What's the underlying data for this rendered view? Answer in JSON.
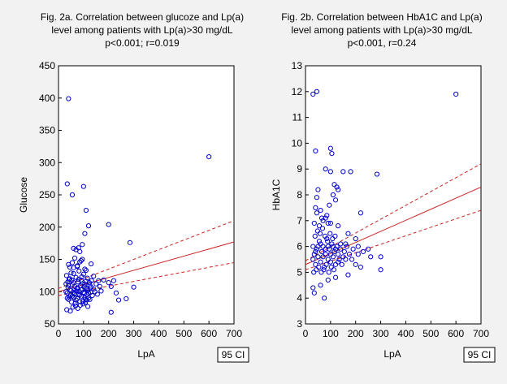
{
  "chart_data": [
    {
      "type": "scatter",
      "title": "Fig. 2a. Correlation between glucoze and Lp(a)",
      "subtitle": "level among patients with Lp(a)>30 mg/dL",
      "stats": "p<0.001; r=0.019",
      "xlabel": "LpA",
      "ylabel": "Glucose",
      "xlim": [
        0,
        700
      ],
      "ylim": [
        50,
        450
      ],
      "x_ticks": [
        0,
        100,
        200,
        300,
        400,
        500,
        600,
        700
      ],
      "y_ticks": [
        50,
        100,
        150,
        200,
        250,
        300,
        350,
        400,
        450
      ],
      "legend": "95 CI",
      "grid": false,
      "point_color": "#0000cc",
      "fit_color": "#cc2222",
      "regression": {
        "start": [
          0,
          100
        ],
        "end": [
          700,
          177
        ]
      },
      "ci_upper": {
        "start": [
          0,
          105
        ],
        "end": [
          700,
          210
        ]
      },
      "ci_lower": {
        "start": [
          0,
          94
        ],
        "end": [
          700,
          145
        ]
      },
      "points": [
        [
          40,
          399
        ],
        [
          35,
          267
        ],
        [
          55,
          250
        ],
        [
          100,
          263
        ],
        [
          600,
          309
        ],
        [
          285,
          176
        ],
        [
          200,
          204
        ],
        [
          105,
          190
        ],
        [
          110,
          226
        ],
        [
          120,
          202
        ],
        [
          60,
          167
        ],
        [
          70,
          165
        ],
        [
          80,
          168
        ],
        [
          40,
          142
        ],
        [
          90,
          148
        ],
        [
          130,
          143
        ],
        [
          140,
          124
        ],
        [
          160,
          117
        ],
        [
          180,
          118
        ],
        [
          200,
          114
        ],
        [
          210,
          108
        ],
        [
          220,
          117
        ],
        [
          230,
          98
        ],
        [
          240,
          87
        ],
        [
          270,
          89
        ],
        [
          300,
          107
        ],
        [
          210,
          68
        ],
        [
          30,
          112
        ],
        [
          32,
          125
        ],
        [
          35,
          98
        ],
        [
          38,
          106
        ],
        [
          40,
          88
        ],
        [
          42,
          119
        ],
        [
          45,
          103
        ],
        [
          48,
          95
        ],
        [
          50,
          129
        ],
        [
          52,
          84
        ],
        [
          55,
          111
        ],
        [
          58,
          99
        ],
        [
          60,
          137
        ],
        [
          62,
          91
        ],
        [
          65,
          108
        ],
        [
          68,
          78
        ],
        [
          70,
          122
        ],
        [
          72,
          101
        ],
        [
          75,
          89
        ],
        [
          78,
          115
        ],
        [
          80,
          96
        ],
        [
          82,
          132
        ],
        [
          85,
          85
        ],
        [
          88,
          109
        ],
        [
          90,
          118
        ],
        [
          92,
          93
        ],
        [
          95,
          104
        ],
        [
          98,
          81
        ],
        [
          100,
          127
        ],
        [
          103,
          97
        ],
        [
          105,
          112
        ],
        [
          108,
          88
        ],
        [
          110,
          105
        ],
        [
          113,
          95
        ],
        [
          115,
          121
        ],
        [
          118,
          102
        ],
        [
          120,
          90
        ],
        [
          125,
          110
        ],
        [
          128,
          99
        ],
        [
          132,
          117
        ],
        [
          135,
          94
        ],
        [
          140,
          104
        ],
        [
          145,
          100
        ],
        [
          150,
          112
        ],
        [
          155,
          96
        ],
        [
          165,
          108
        ],
        [
          170,
          101
        ],
        [
          45,
          138
        ],
        [
          55,
          145
        ],
        [
          65,
          152
        ],
        [
          75,
          140
        ],
        [
          85,
          146
        ],
        [
          95,
          150
        ],
        [
          105,
          135
        ],
        [
          33,
          72
        ],
        [
          47,
          70
        ],
        [
          57,
          76
        ],
        [
          67,
          82
        ],
        [
          77,
          74
        ],
        [
          87,
          79
        ],
        [
          97,
          85
        ],
        [
          107,
          83
        ],
        [
          117,
          77
        ],
        [
          37,
          115
        ],
        [
          43,
          92
        ],
        [
          53,
          118
        ],
        [
          63,
          96
        ],
        [
          73,
          105
        ],
        [
          83,
          100
        ],
        [
          93,
          123
        ],
        [
          103,
          108
        ],
        [
          113,
          87
        ],
        [
          123,
          114
        ],
        [
          30,
          100
        ],
        [
          35,
          90
        ],
        [
          40,
          110
        ],
        [
          45,
          120
        ],
        [
          50,
          102
        ],
        [
          55,
          93
        ],
        [
          60,
          114
        ],
        [
          65,
          98
        ],
        [
          70,
          87
        ],
        [
          75,
          106
        ],
        [
          80,
          119
        ],
        [
          85,
          95
        ],
        [
          90,
          103
        ],
        [
          95,
          112
        ],
        [
          100,
          99
        ],
        [
          105,
          91
        ],
        [
          110,
          116
        ],
        [
          115,
          104
        ],
        [
          120,
          98
        ],
        [
          125,
          88
        ],
        [
          130,
          107
        ],
        [
          110,
          133
        ],
        [
          85,
          162
        ],
        [
          95,
          173
        ],
        [
          75,
          139
        ],
        [
          60,
          128
        ]
      ]
    },
    {
      "type": "scatter",
      "title": "Fig. 2b. Correlation between HbA1C and Lp(a)",
      "subtitle": "level among patients with Lp(a)>30 mg/dL",
      "stats": "p<0.001, r=0.24",
      "xlabel": "LpA",
      "ylabel": "HbA1C",
      "xlim": [
        0,
        700
      ],
      "ylim": [
        3,
        13
      ],
      "x_ticks": [
        0,
        100,
        200,
        300,
        400,
        500,
        600,
        700
      ],
      "y_ticks": [
        3,
        4,
        5,
        6,
        7,
        8,
        9,
        10,
        11,
        12,
        13
      ],
      "legend": "95 CI",
      "grid": false,
      "point_color": "#0000cc",
      "fit_color": "#cc2222",
      "regression": {
        "start": [
          0,
          5.3
        ],
        "end": [
          700,
          8.3
        ]
      },
      "ci_upper": {
        "start": [
          0,
          5.45
        ],
        "end": [
          700,
          9.2
        ]
      },
      "ci_lower": {
        "start": [
          0,
          5.1
        ],
        "end": [
          700,
          7.4
        ]
      },
      "points": [
        [
          30,
          11.9
        ],
        [
          45,
          12.0
        ],
        [
          600,
          11.9
        ],
        [
          40,
          9.7
        ],
        [
          100,
          9.8
        ],
        [
          105,
          9.6
        ],
        [
          80,
          9.0
        ],
        [
          100,
          8.9
        ],
        [
          150,
          8.9
        ],
        [
          180,
          8.9
        ],
        [
          285,
          8.8
        ],
        [
          115,
          8.4
        ],
        [
          125,
          8.3
        ],
        [
          130,
          8.2
        ],
        [
          50,
          8.2
        ],
        [
          110,
          8.0
        ],
        [
          45,
          7.9
        ],
        [
          120,
          7.8
        ],
        [
          40,
          7.5
        ],
        [
          60,
          7.4
        ],
        [
          220,
          7.3
        ],
        [
          80,
          7.1
        ],
        [
          70,
          7.0
        ],
        [
          90,
          6.9
        ],
        [
          100,
          6.9
        ],
        [
          130,
          6.8
        ],
        [
          170,
          6.5
        ],
        [
          200,
          6.3
        ],
        [
          210,
          6.0
        ],
        [
          140,
          6.1
        ],
        [
          160,
          6.1
        ],
        [
          230,
          5.8
        ],
        [
          260,
          5.6
        ],
        [
          300,
          5.6
        ],
        [
          300,
          5.1
        ],
        [
          220,
          5.2
        ],
        [
          200,
          5.3
        ],
        [
          170,
          4.9
        ],
        [
          75,
          4.0
        ],
        [
          35,
          4.2
        ],
        [
          30,
          4.4
        ],
        [
          120,
          4.8
        ],
        [
          60,
          4.5
        ],
        [
          90,
          4.7
        ],
        [
          30,
          5.5
        ],
        [
          35,
          5.7
        ],
        [
          40,
          5.3
        ],
        [
          45,
          5.9
        ],
        [
          50,
          5.6
        ],
        [
          55,
          6.2
        ],
        [
          60,
          5.4
        ],
        [
          65,
          5.8
        ],
        [
          70,
          6.0
        ],
        [
          75,
          5.2
        ],
        [
          80,
          5.7
        ],
        [
          85,
          6.3
        ],
        [
          90,
          5.5
        ],
        [
          95,
          5.9
        ],
        [
          100,
          5.4
        ],
        [
          105,
          6.1
        ],
        [
          110,
          5.6
        ],
        [
          115,
          5.8
        ],
        [
          120,
          5.3
        ],
        [
          125,
          6.0
        ],
        [
          130,
          5.7
        ],
        [
          135,
          5.5
        ],
        [
          140,
          5.9
        ],
        [
          150,
          5.6
        ],
        [
          155,
          5.8
        ],
        [
          165,
          6.0
        ],
        [
          175,
          5.7
        ],
        [
          185,
          5.5
        ],
        [
          33,
          5.0
        ],
        [
          38,
          6.4
        ],
        [
          43,
          5.1
        ],
        [
          48,
          6.6
        ],
        [
          53,
          5.2
        ],
        [
          58,
          6.5
        ],
        [
          63,
          5.0
        ],
        [
          68,
          6.7
        ],
        [
          73,
          5.1
        ],
        [
          78,
          6.4
        ],
        [
          83,
          5.3
        ],
        [
          88,
          6.2
        ],
        [
          93,
          5.0
        ],
        [
          98,
          6.5
        ],
        [
          103,
          5.2
        ],
        [
          108,
          6.3
        ],
        [
          113,
          5.1
        ],
        [
          118,
          6.4
        ],
        [
          35,
          6.9
        ],
        [
          45,
          7.3
        ],
        [
          55,
          6.8
        ],
        [
          65,
          7.1
        ],
        [
          85,
          7.2
        ],
        [
          95,
          7.6
        ],
        [
          30,
          6.0
        ],
        [
          40,
          5.8
        ],
        [
          50,
          6.0
        ],
        [
          60,
          6.1
        ],
        [
          70,
          5.6
        ],
        [
          80,
          5.9
        ],
        [
          90,
          6.0
        ],
        [
          100,
          5.7
        ],
        [
          110,
          6.0
        ],
        [
          120,
          5.9
        ],
        [
          130,
          5.4
        ],
        [
          145,
          5.3
        ],
        [
          160,
          5.5
        ],
        [
          190,
          5.9
        ],
        [
          250,
          5.9
        ],
        [
          210,
          5.7
        ]
      ]
    }
  ]
}
